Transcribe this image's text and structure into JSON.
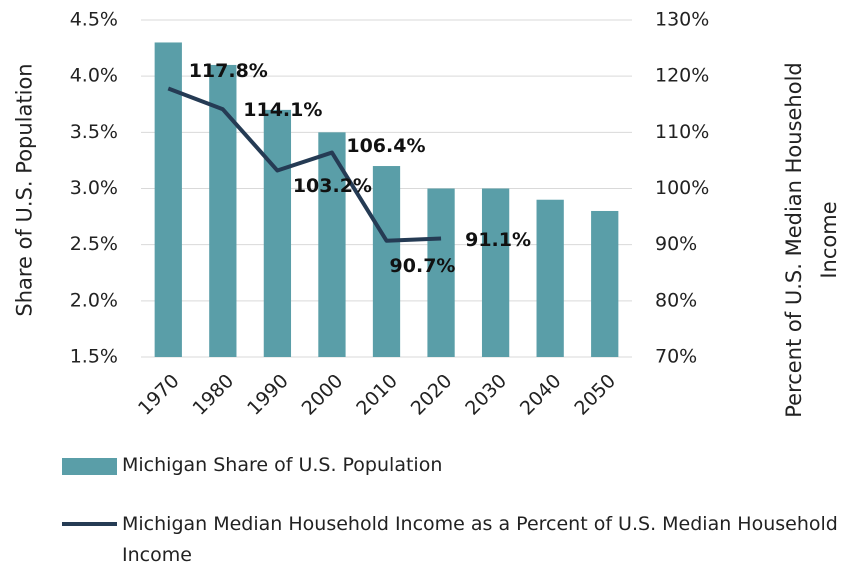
{
  "chart_data": {
    "type": "bar",
    "categories": [
      "1970",
      "1980",
      "1990",
      "2000",
      "2010",
      "2020",
      "2030",
      "2040",
      "2050"
    ],
    "ylabel": "Share of U.S. Population",
    "y2label": "Percent of U.S. Median Household Income",
    "series": [
      {
        "name": "Michigan Share of U.S. Population",
        "type": "bar",
        "color": "#5a9ea8",
        "values": [
          4.3,
          4.1,
          3.7,
          3.5,
          3.2,
          3.0,
          3.0,
          2.9,
          2.8
        ]
      },
      {
        "name": "Michigan Median Household Income as a Percent of U.S. Median Household Income",
        "type": "line",
        "axis": "y2",
        "color": "#253b54",
        "values": [
          117.8,
          114.1,
          103.2,
          106.4,
          90.7,
          91.1,
          null,
          null,
          null
        ],
        "value_labels": [
          "117.8%",
          "114.1%",
          "103.2%",
          "106.4%",
          "90.7%",
          "91.1%",
          null,
          null,
          null
        ]
      }
    ],
    "ylim": [
      1.5,
      4.5
    ],
    "yticks": [
      {
        "value": 1.5,
        "label": "1.5%"
      },
      {
        "value": 2.0,
        "label": "2.0%"
      },
      {
        "value": 2.5,
        "label": "2.5%"
      },
      {
        "value": 3.0,
        "label": "3.0%"
      },
      {
        "value": 3.5,
        "label": "3.5%"
      },
      {
        "value": 4.0,
        "label": "4.0%"
      },
      {
        "value": 4.5,
        "label": "4.5%"
      }
    ],
    "y2lim": [
      70,
      130
    ],
    "y2ticks": [
      {
        "value": 70,
        "label": "70%"
      },
      {
        "value": 80,
        "label": "80%"
      },
      {
        "value": 90,
        "label": "90%"
      },
      {
        "value": 100,
        "label": "100%"
      },
      {
        "value": 110,
        "label": "110%"
      },
      {
        "value": 120,
        "label": "120%"
      },
      {
        "value": 130,
        "label": "130%"
      }
    ],
    "grid": true
  }
}
